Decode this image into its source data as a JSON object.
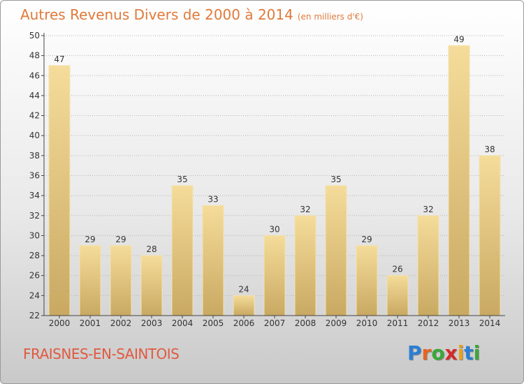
{
  "header": {
    "title": "Autres Revenus Divers de 2000 à 2014",
    "unit": "(en milliers d'€)"
  },
  "footer": {
    "city": "FRAISNES-EN-SAINTOIS",
    "logo_letters": [
      "P",
      "r",
      "o",
      "x",
      "i",
      "t",
      "i"
    ],
    "logo_colors": [
      "#2a7fd4",
      "#e8641e",
      "#3aa83a",
      "#d62a2a",
      "#e8a21e",
      "#2a7fd4",
      "#3aa83a"
    ]
  },
  "colors": {
    "bar_light": "#f5dc9a",
    "bar_dark": "#c9a962",
    "axis": "#444444",
    "grid": "#b5b5b5"
  },
  "chart_data": {
    "type": "bar",
    "title": "Autres Revenus Divers de 2000 à 2014",
    "xlabel": "",
    "ylabel": "",
    "categories": [
      "2000",
      "2001",
      "2002",
      "2003",
      "2004",
      "2005",
      "2006",
      "2007",
      "2008",
      "2009",
      "2010",
      "2011",
      "2012",
      "2013",
      "2014"
    ],
    "values": [
      47,
      29,
      29,
      28,
      35,
      33,
      24,
      30,
      32,
      35,
      29,
      26,
      32,
      49,
      38
    ],
    "ylim": [
      22,
      50
    ],
    "yticks": [
      22,
      24,
      26,
      28,
      30,
      32,
      34,
      36,
      38,
      40,
      42,
      44,
      46,
      48,
      50
    ],
    "grid": true,
    "data_labels": true
  }
}
